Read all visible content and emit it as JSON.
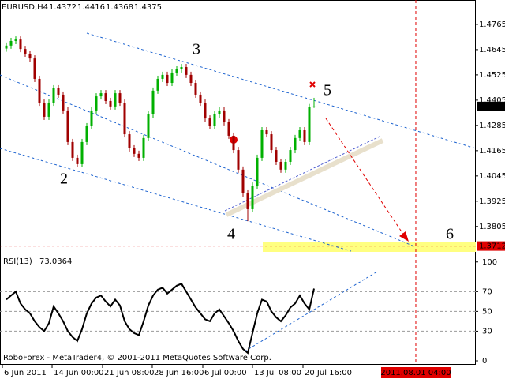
{
  "chart_data": [
    {
      "type": "candlestick",
      "symbol": "EURUSD,H4",
      "open": [
        1.465,
        1.4664,
        1.4686,
        1.4693,
        1.4648,
        1.4626,
        1.4603,
        1.4506,
        1.4393,
        1.4326,
        1.4393,
        1.4461,
        1.4431,
        1.4356,
        1.4206,
        1.4131,
        1.4101,
        1.4206,
        1.4281,
        1.4356,
        1.4423,
        1.4438,
        1.4401,
        1.4375,
        1.4438,
        1.4393,
        1.4243,
        1.4176,
        1.415,
        1.4131,
        1.4225,
        1.4337,
        1.445,
        1.4506,
        1.4525,
        1.4487,
        1.4536,
        1.4551,
        1.4562,
        1.4525,
        1.4487,
        1.4431,
        1.4393,
        1.4318,
        1.4281,
        1.4337,
        1.4356,
        1.43,
        1.4236,
        1.4168,
        1.4075,
        1.3962,
        1.3887,
        1.3999,
        1.4131,
        1.4262,
        1.4243,
        1.4168,
        1.4112,
        1.4075,
        1.4112,
        1.4168,
        1.4225,
        1.4262,
        1.4206,
        1.4372
      ],
      "high": [
        1.4679,
        1.4701,
        1.4708,
        1.4708,
        1.4663,
        1.4641,
        1.4618,
        1.4521,
        1.4408,
        1.4408,
        1.4476,
        1.4476,
        1.4446,
        1.4371,
        1.4221,
        1.4146,
        1.4221,
        1.4296,
        1.4371,
        1.4438,
        1.4453,
        1.4453,
        1.4416,
        1.4453,
        1.4453,
        1.4408,
        1.4258,
        1.4191,
        1.4165,
        1.424,
        1.4352,
        1.4465,
        1.4521,
        1.454,
        1.454,
        1.4551,
        1.4566,
        1.4577,
        1.4577,
        1.454,
        1.4502,
        1.4446,
        1.4408,
        1.4333,
        1.4352,
        1.4371,
        1.4371,
        1.4315,
        1.4251,
        1.4183,
        1.409,
        1.3977,
        1.4014,
        1.4146,
        1.4277,
        1.4277,
        1.4258,
        1.4183,
        1.4127,
        1.4127,
        1.4183,
        1.424,
        1.4277,
        1.4277,
        1.4387,
        1.4416
      ],
      "low": [
        1.4635,
        1.4649,
        1.4671,
        1.4633,
        1.4611,
        1.4588,
        1.4491,
        1.4378,
        1.4311,
        1.4311,
        1.4378,
        1.4416,
        1.4341,
        1.4191,
        1.4116,
        1.4086,
        1.4086,
        1.4191,
        1.4266,
        1.4341,
        1.4408,
        1.4386,
        1.436,
        1.436,
        1.4378,
        1.4228,
        1.4161,
        1.4135,
        1.4116,
        1.4116,
        1.421,
        1.4322,
        1.4435,
        1.4491,
        1.4472,
        1.4472,
        1.4521,
        1.4536,
        1.451,
        1.4472,
        1.4416,
        1.4378,
        1.4303,
        1.4266,
        1.4266,
        1.4322,
        1.4285,
        1.4221,
        1.4153,
        1.406,
        1.3947,
        1.383,
        1.3872,
        1.3984,
        1.4116,
        1.4228,
        1.4153,
        1.4097,
        1.406,
        1.406,
        1.4097,
        1.4153,
        1.421,
        1.4191,
        1.4191,
        1.4368
      ],
      "close": [
        1.4664,
        1.4686,
        1.4693,
        1.4648,
        1.4626,
        1.4603,
        1.4506,
        1.4393,
        1.4326,
        1.4393,
        1.4461,
        1.4431,
        1.4356,
        1.4206,
        1.4131,
        1.4101,
        1.4206,
        1.4281,
        1.4356,
        1.4423,
        1.4438,
        1.4401,
        1.4375,
        1.4438,
        1.4393,
        1.4243,
        1.4176,
        1.415,
        1.4131,
        1.4225,
        1.4337,
        1.445,
        1.4506,
        1.4525,
        1.4487,
        1.4536,
        1.4551,
        1.4562,
        1.4525,
        1.4487,
        1.4431,
        1.4393,
        1.4318,
        1.4281,
        1.4337,
        1.4356,
        1.43,
        1.4236,
        1.4168,
        1.4075,
        1.3962,
        1.3887,
        1.3999,
        1.4131,
        1.4262,
        1.4243,
        1.4168,
        1.4112,
        1.4075,
        1.4112,
        1.4168,
        1.4225,
        1.4262,
        1.4206,
        1.4372,
        1.4375
      ],
      "up_color": "#00b000",
      "down_color": "#a00000",
      "xlim": [
        -1.333,
        99.17
      ],
      "ylim": [
        1.3688,
        1.4881
      ],
      "yticks": [
        1.4765,
        1.4645,
        1.4525,
        1.4405,
        1.4285,
        1.4165,
        1.4045,
        1.3925,
        1.3805
      ],
      "xticks": [
        {
          "value": -0.83,
          "label": "6 Jun 2011"
        },
        {
          "value": 9.67,
          "label": "14 Jun 00:00"
        },
        {
          "value": 20.33,
          "label": "21 Jun 08:00"
        },
        {
          "value": 30.83,
          "label": "28 Jun 16:00"
        },
        {
          "value": 41.5,
          "label": "6 Jul 00:00"
        },
        {
          "value": 52,
          "label": "13 Jul 08:00"
        },
        {
          "value": 62.67,
          "label": "20 Jul 16:00"
        }
      ],
      "forecast_time": {
        "value": 86.5,
        "label": "2011.08.01 04:00"
      },
      "target_level": 1.3712,
      "wave_labels": [
        "2",
        "3",
        "4",
        "5",
        "6"
      ]
    },
    {
      "type": "line",
      "title": "RSI(13)",
      "color": "#000000",
      "values": [
        62,
        66,
        70,
        58,
        52,
        48,
        40,
        34,
        30,
        38,
        55,
        48,
        40,
        30,
        24,
        20,
        32,
        48,
        58,
        64,
        66,
        60,
        55,
        62,
        56,
        40,
        32,
        28,
        26,
        40,
        56,
        66,
        72,
        74,
        68,
        72,
        76,
        78,
        70,
        62,
        54,
        48,
        42,
        40,
        48,
        52,
        45,
        38,
        30,
        20,
        12,
        8,
        28,
        48,
        62,
        60,
        50,
        44,
        40,
        46,
        54,
        58,
        66,
        58,
        52,
        73.0364
      ],
      "ylim": [
        -4,
        107
      ],
      "yticks": [
        100,
        70,
        50,
        30,
        0
      ],
      "grid": true,
      "footer": "RoboForex - MetaTrader4, © 2001-2011 MetaQuotes Software Corp."
    }
  ]
}
